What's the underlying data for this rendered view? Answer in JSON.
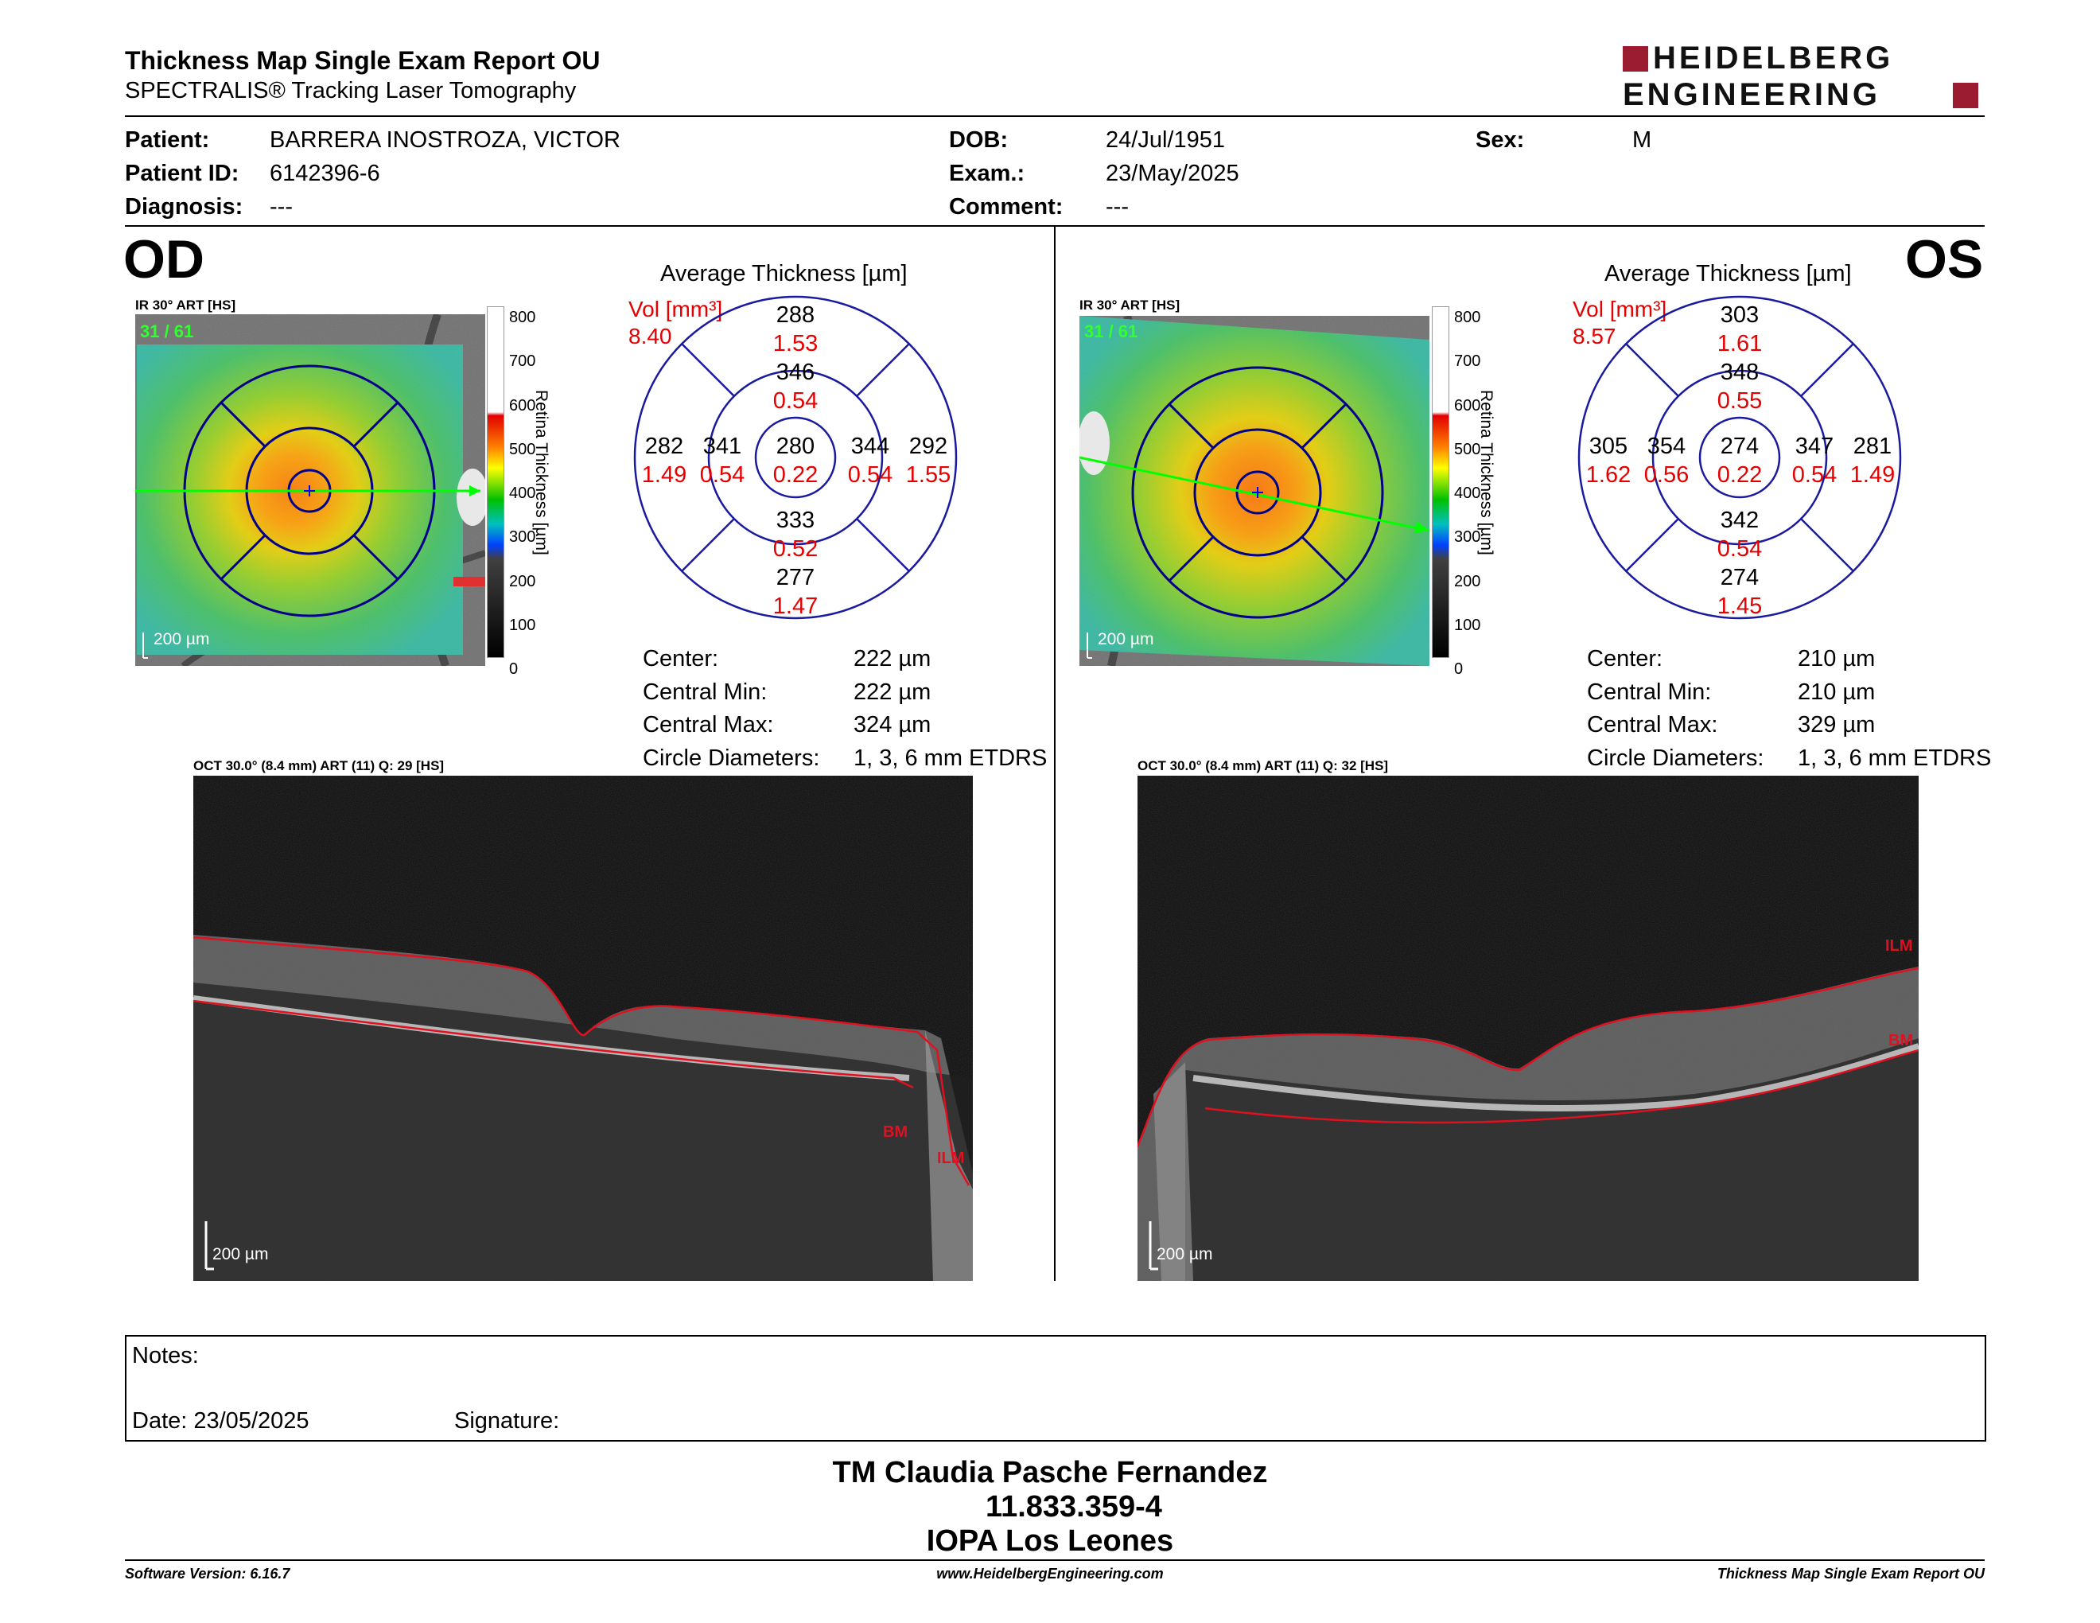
{
  "header": {
    "title": "Thickness Map Single Exam Report OU",
    "subtitle": "SPECTRALIS® Tracking Laser Tomography",
    "logo_line1": "HEIDELBERG",
    "logo_line2": "ENGINEERING"
  },
  "patient": {
    "patient_label": "Patient:",
    "patient_value": "BARRERA INOSTROZA, VICTOR",
    "id_label": "Patient ID:",
    "id_value": "6142396-6",
    "diagnosis_label": "Diagnosis:",
    "diagnosis_value": "---",
    "dob_label": "DOB:",
    "dob_value": "24/Jul/1951",
    "exam_label": "Exam.:",
    "exam_value": "23/May/2025",
    "comment_label": "Comment:",
    "comment_value": "---",
    "sex_label": "Sex:",
    "sex_value": "M"
  },
  "colorbar": {
    "ticks": [
      "800",
      "700",
      "600",
      "500",
      "400",
      "300",
      "200",
      "100",
      "0"
    ],
    "label": "Retina Thickness [µm]"
  },
  "od": {
    "eye": "OD",
    "ir_label": "IR 30° ART [HS]",
    "frame_label": "31 / 61",
    "scale": "200 µm",
    "avg_title": "Average Thickness [µm]",
    "vol_label": "Vol [mm³]",
    "vol_value": "8.40",
    "sectors": {
      "center": {
        "t": "280",
        "v": "0.22"
      },
      "inner_sup": {
        "t": "346",
        "v": "0.54"
      },
      "inner_inf": {
        "t": "333",
        "v": "0.52"
      },
      "inner_left": {
        "t": "341",
        "v": "0.54"
      },
      "inner_right": {
        "t": "344",
        "v": "0.54"
      },
      "outer_sup": {
        "t": "288",
        "v": "1.53"
      },
      "outer_inf": {
        "t": "277",
        "v": "1.47"
      },
      "outer_left": {
        "t": "282",
        "v": "1.49"
      },
      "outer_right": {
        "t": "292",
        "v": "1.55"
      }
    },
    "stats": {
      "center_label": "Center:",
      "center_value": "222 µm",
      "min_label": "Central Min:",
      "min_value": "222 µm",
      "max_label": "Central Max:",
      "max_value": "324 µm",
      "diam_label": "Circle Diameters:",
      "diam_value": "1, 3, 6 mm ETDRS"
    },
    "oct_label": "OCT 30.0° (8.4 mm) ART (11) Q: 29 [HS]",
    "oct_scale": "200 µm",
    "ilm": "ILM",
    "bm": "BM"
  },
  "os": {
    "eye": "OS",
    "ir_label": "IR 30° ART [HS]",
    "frame_label": "31 / 61",
    "scale": "200 µm",
    "avg_title": "Average Thickness [µm]",
    "vol_label": "Vol [mm³]",
    "vol_value": "8.57",
    "sectors": {
      "center": {
        "t": "274",
        "v": "0.22"
      },
      "inner_sup": {
        "t": "348",
        "v": "0.55"
      },
      "inner_inf": {
        "t": "342",
        "v": "0.54"
      },
      "inner_left": {
        "t": "354",
        "v": "0.56"
      },
      "inner_right": {
        "t": "347",
        "v": "0.54"
      },
      "outer_sup": {
        "t": "303",
        "v": "1.61"
      },
      "outer_inf": {
        "t": "274",
        "v": "1.45"
      },
      "outer_left": {
        "t": "305",
        "v": "1.62"
      },
      "outer_right": {
        "t": "281",
        "v": "1.49"
      }
    },
    "stats": {
      "center_label": "Center:",
      "center_value": "210 µm",
      "min_label": "Central Min:",
      "min_value": "210 µm",
      "max_label": "Central Max:",
      "max_value": "329 µm",
      "diam_label": "Circle Diameters:",
      "diam_value": "1, 3, 6 mm ETDRS"
    },
    "oct_label": "OCT 30.0° (8.4 mm) ART (11) Q: 32 [HS]",
    "oct_scale": "200 µm",
    "ilm": "ILM",
    "bm": "BM"
  },
  "notes": {
    "notes_label": "Notes:",
    "date_label": "Date: 23/05/2025",
    "signature_label": "Signature:"
  },
  "signer": {
    "name": "TM Claudia Pasche Fernandez",
    "id": "11.833.359-4",
    "org": "IOPA Los Leones"
  },
  "footer": {
    "version": "Software Version: 6.16.7",
    "url": "www.HeidelbergEngineering.com",
    "report": "Thickness Map Single Exam Report OU"
  }
}
